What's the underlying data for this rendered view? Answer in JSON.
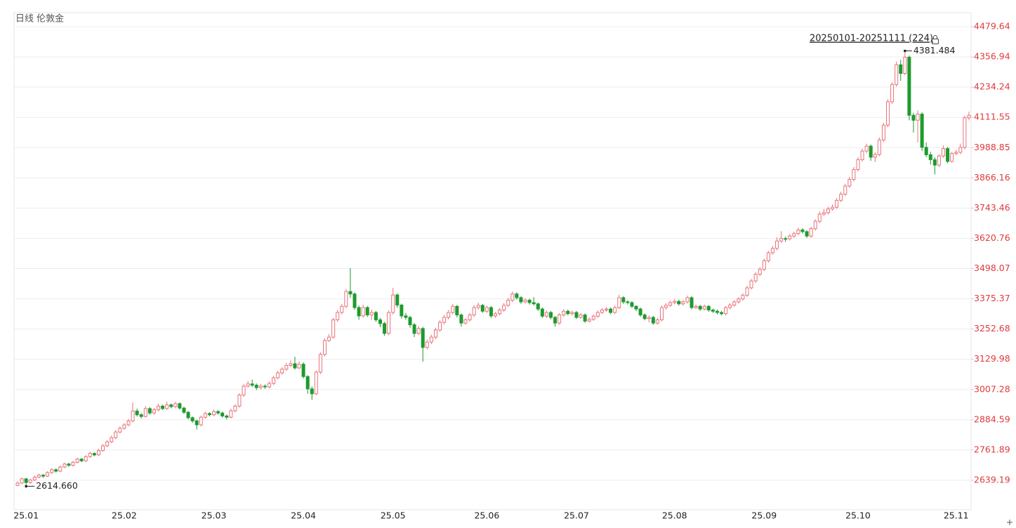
{
  "chart_data": {
    "type": "candlestick",
    "title": "日线 伦敦金",
    "range_label": "20250101-20251111 (224)",
    "categories": [
      null,
      null,
      "25.01",
      null,
      null,
      null,
      null,
      null,
      null,
      null,
      null,
      null,
      null,
      null,
      null,
      null,
      null,
      null,
      null,
      null,
      null,
      null,
      null,
      null,
      null,
      "25.02",
      null,
      null,
      null,
      null,
      null,
      null,
      null,
      null,
      null,
      null,
      null,
      null,
      null,
      null,
      null,
      null,
      null,
      null,
      null,
      null,
      "25.03",
      null,
      null,
      null,
      null,
      null,
      null,
      null,
      null,
      null,
      null,
      null,
      null,
      null,
      null,
      null,
      null,
      null,
      null,
      null,
      null,
      "25.04",
      null,
      null,
      null,
      null,
      null,
      null,
      null,
      null,
      null,
      null,
      null,
      null,
      null,
      null,
      null,
      null,
      null,
      null,
      null,
      null,
      "25.05",
      null,
      null,
      null,
      null,
      null,
      null,
      null,
      null,
      null,
      null,
      null,
      null,
      null,
      null,
      null,
      null,
      null,
      null,
      null,
      null,
      null,
      "25.06",
      null,
      null,
      null,
      null,
      null,
      null,
      null,
      null,
      null,
      null,
      null,
      null,
      null,
      null,
      null,
      null,
      null,
      null,
      null,
      null,
      "25.07",
      null,
      null,
      null,
      null,
      null,
      null,
      null,
      null,
      null,
      null,
      null,
      null,
      null,
      null,
      null,
      null,
      null,
      null,
      null,
      null,
      null,
      null,
      "25.08",
      null,
      null,
      null,
      null,
      null,
      null,
      null,
      null,
      null,
      null,
      null,
      null,
      null,
      null,
      null,
      null,
      null,
      null,
      null,
      null,
      "25.09",
      null,
      null,
      null,
      null,
      null,
      null,
      null,
      null,
      null,
      null,
      null,
      null,
      null,
      null,
      null,
      null,
      null,
      null,
      null,
      null,
      null,
      "25.10",
      null,
      null,
      null,
      null,
      null,
      null,
      null,
      null,
      null,
      null,
      null,
      null,
      null,
      null,
      null,
      null,
      null,
      null,
      null,
      null,
      null,
      null,
      "25.11",
      null,
      null,
      null
    ],
    "ohlc": [
      [
        2618,
        2634,
        2616,
        2628
      ],
      [
        2628,
        2650,
        2624,
        2645
      ],
      [
        2645,
        2648,
        2614.66,
        2630
      ],
      [
        2630,
        2645,
        2625,
        2640
      ],
      [
        2640,
        2658,
        2636,
        2652
      ],
      [
        2652,
        2666,
        2647,
        2660
      ],
      [
        2660,
        2664,
        2649,
        2656
      ],
      [
        2656,
        2676,
        2652,
        2670
      ],
      [
        2670,
        2688,
        2665,
        2682
      ],
      [
        2682,
        2687,
        2670,
        2676
      ],
      [
        2676,
        2699,
        2672,
        2693
      ],
      [
        2693,
        2711,
        2688,
        2705
      ],
      [
        2705,
        2710,
        2694,
        2700
      ],
      [
        2700,
        2718,
        2695,
        2712
      ],
      [
        2712,
        2731,
        2707,
        2725
      ],
      [
        2725,
        2729,
        2712,
        2718
      ],
      [
        2718,
        2742,
        2713,
        2735
      ],
      [
        2735,
        2755,
        2730,
        2748
      ],
      [
        2748,
        2752,
        2736,
        2742
      ],
      [
        2742,
        2767,
        2738,
        2760
      ],
      [
        2760,
        2786,
        2755,
        2779
      ],
      [
        2779,
        2802,
        2773,
        2795
      ],
      [
        2795,
        2820,
        2790,
        2812
      ],
      [
        2812,
        2843,
        2806,
        2835
      ],
      [
        2835,
        2858,
        2829,
        2850
      ],
      [
        2850,
        2871,
        2844,
        2864
      ],
      [
        2864,
        2888,
        2858,
        2880
      ],
      [
        2880,
        2955,
        2874,
        2920
      ],
      [
        2920,
        2930,
        2898,
        2905
      ],
      [
        2905,
        2912,
        2890,
        2898
      ],
      [
        2898,
        2940,
        2893,
        2930
      ],
      [
        2930,
        2936,
        2905,
        2912
      ],
      [
        2912,
        2933,
        2906,
        2925
      ],
      [
        2925,
        2950,
        2919,
        2940
      ],
      [
        2940,
        2946,
        2924,
        2930
      ],
      [
        2930,
        2958,
        2925,
        2945
      ],
      [
        2945,
        2950,
        2931,
        2938
      ],
      [
        2938,
        2958,
        2932,
        2950
      ],
      [
        2950,
        2955,
        2926,
        2932
      ],
      [
        2932,
        2938,
        2908,
        2915
      ],
      [
        2915,
        2920,
        2886,
        2893
      ],
      [
        2893,
        2898,
        2872,
        2880
      ],
      [
        2880,
        2886,
        2845,
        2864
      ],
      [
        2864,
        2902,
        2858,
        2895
      ],
      [
        2895,
        2918,
        2889,
        2910
      ],
      [
        2910,
        2915,
        2898,
        2905
      ],
      [
        2905,
        2926,
        2899,
        2918
      ],
      [
        2918,
        2924,
        2905,
        2912
      ],
      [
        2912,
        2917,
        2893,
        2900
      ],
      [
        2900,
        2906,
        2886,
        2895
      ],
      [
        2895,
        2930,
        2890,
        2921
      ],
      [
        2921,
        2948,
        2915,
        2940
      ],
      [
        2940,
        2992,
        2934,
        2985
      ],
      [
        2985,
        3030,
        2978,
        3021
      ],
      [
        3021,
        3042,
        3015,
        3030
      ],
      [
        3030,
        3048,
        3018,
        3025
      ],
      [
        3025,
        3032,
        3005,
        3015
      ],
      [
        3015,
        3030,
        3008,
        3021
      ],
      [
        3021,
        3028,
        3010,
        3018
      ],
      [
        3018,
        3040,
        3012,
        3032
      ],
      [
        3032,
        3063,
        3026,
        3055
      ],
      [
        3055,
        3084,
        3049,
        3075
      ],
      [
        3075,
        3098,
        3068,
        3090
      ],
      [
        3090,
        3115,
        3083,
        3105
      ],
      [
        3105,
        3125,
        3098,
        3112
      ],
      [
        3112,
        3140,
        3088,
        3095
      ],
      [
        3095,
        3122,
        3090,
        3110
      ],
      [
        3110,
        3118,
        3052,
        3060
      ],
      [
        3060,
        3066,
        2990,
        3010
      ],
      [
        3010,
        3020,
        2965,
        2990
      ],
      [
        2990,
        3085,
        2984,
        3078
      ],
      [
        3078,
        3158,
        3070,
        3150
      ],
      [
        3150,
        3215,
        3142,
        3206
      ],
      [
        3206,
        3232,
        3200,
        3220
      ],
      [
        3220,
        3298,
        3214,
        3290
      ],
      [
        3290,
        3330,
        3282,
        3320
      ],
      [
        3320,
        3355,
        3312,
        3345
      ],
      [
        3345,
        3415,
        3338,
        3405
      ],
      [
        3405,
        3500,
        3380,
        3395
      ],
      [
        3395,
        3402,
        3330,
        3340
      ],
      [
        3340,
        3348,
        3290,
        3306
      ],
      [
        3306,
        3352,
        3300,
        3340
      ],
      [
        3340,
        3346,
        3302,
        3310
      ],
      [
        3310,
        3332,
        3290,
        3320
      ],
      [
        3320,
        3326,
        3282,
        3290
      ],
      [
        3290,
        3298,
        3260,
        3275
      ],
      [
        3275,
        3282,
        3225,
        3235
      ],
      [
        3235,
        3328,
        3228,
        3320
      ],
      [
        3320,
        3420,
        3312,
        3391
      ],
      [
        3391,
        3398,
        3340,
        3350
      ],
      [
        3350,
        3356,
        3295,
        3306
      ],
      [
        3306,
        3318,
        3290,
        3300
      ],
      [
        3300,
        3306,
        3258,
        3270
      ],
      [
        3270,
        3278,
        3220,
        3235
      ],
      [
        3235,
        3265,
        3228,
        3255
      ],
      [
        3255,
        3262,
        3120,
        3178
      ],
      [
        3178,
        3210,
        3170,
        3200
      ],
      [
        3200,
        3230,
        3192,
        3220
      ],
      [
        3220,
        3258,
        3212,
        3249
      ],
      [
        3249,
        3288,
        3242,
        3280
      ],
      [
        3280,
        3310,
        3272,
        3300
      ],
      [
        3300,
        3330,
        3292,
        3320
      ],
      [
        3320,
        3355,
        3312,
        3345
      ],
      [
        3345,
        3350,
        3300,
        3310
      ],
      [
        3310,
        3316,
        3262,
        3277
      ],
      [
        3277,
        3298,
        3270,
        3290
      ],
      [
        3290,
        3318,
        3282,
        3310
      ],
      [
        3310,
        3350,
        3302,
        3340
      ],
      [
        3340,
        3360,
        3332,
        3349
      ],
      [
        3349,
        3355,
        3318,
        3325
      ],
      [
        3325,
        3348,
        3318,
        3340
      ],
      [
        3340,
        3346,
        3298,
        3306
      ],
      [
        3306,
        3322,
        3298,
        3315
      ],
      [
        3315,
        3338,
        3308,
        3330
      ],
      [
        3330,
        3358,
        3322,
        3349
      ],
      [
        3349,
        3380,
        3342,
        3370
      ],
      [
        3370,
        3405,
        3362,
        3395
      ],
      [
        3395,
        3402,
        3372,
        3380
      ],
      [
        3380,
        3386,
        3355,
        3363
      ],
      [
        3363,
        3378,
        3356,
        3370
      ],
      [
        3370,
        3376,
        3352,
        3360
      ],
      [
        3360,
        3382,
        3348,
        3355
      ],
      [
        3355,
        3360,
        3326,
        3334
      ],
      [
        3334,
        3340,
        3298,
        3305
      ],
      [
        3305,
        3328,
        3298,
        3320
      ],
      [
        3320,
        3326,
        3292,
        3300
      ],
      [
        3300,
        3306,
        3262,
        3277
      ],
      [
        3277,
        3318,
        3270,
        3310
      ],
      [
        3310,
        3333,
        3302,
        3325
      ],
      [
        3325,
        3332,
        3308,
        3315
      ],
      [
        3315,
        3328,
        3308,
        3320
      ],
      [
        3320,
        3326,
        3293,
        3300
      ],
      [
        3300,
        3318,
        3294,
        3310
      ],
      [
        3310,
        3316,
        3278,
        3285
      ],
      [
        3285,
        3300,
        3279,
        3292
      ],
      [
        3292,
        3312,
        3286,
        3305
      ],
      [
        3305,
        3328,
        3298,
        3320
      ],
      [
        3320,
        3338,
        3314,
        3330
      ],
      [
        3330,
        3342,
        3323,
        3334
      ],
      [
        3334,
        3340,
        3313,
        3320
      ],
      [
        3320,
        3348,
        3314,
        3340
      ],
      [
        3340,
        3392,
        3334,
        3380
      ],
      [
        3380,
        3386,
        3355,
        3363
      ],
      [
        3363,
        3370,
        3352,
        3360
      ],
      [
        3360,
        3366,
        3338,
        3345
      ],
      [
        3345,
        3350,
        3326,
        3334
      ],
      [
        3334,
        3340,
        3303,
        3310
      ],
      [
        3310,
        3316,
        3288,
        3295
      ],
      [
        3295,
        3308,
        3280,
        3300
      ],
      [
        3300,
        3306,
        3270,
        3277
      ],
      [
        3277,
        3298,
        3270,
        3290
      ],
      [
        3290,
        3348,
        3284,
        3340
      ],
      [
        3340,
        3358,
        3332,
        3349
      ],
      [
        3349,
        3368,
        3342,
        3360
      ],
      [
        3360,
        3374,
        3353,
        3365
      ],
      [
        3365,
        3372,
        3348,
        3355
      ],
      [
        3355,
        3370,
        3348,
        3363
      ],
      [
        3363,
        3388,
        3356,
        3380
      ],
      [
        3380,
        3386,
        3332,
        3340
      ],
      [
        3340,
        3352,
        3334,
        3345
      ],
      [
        3345,
        3350,
        3326,
        3334
      ],
      [
        3334,
        3352,
        3328,
        3345
      ],
      [
        3345,
        3350,
        3323,
        3330
      ],
      [
        3330,
        3336,
        3318,
        3325
      ],
      [
        3325,
        3332,
        3312,
        3320
      ],
      [
        3320,
        3326,
        3308,
        3315
      ],
      [
        3315,
        3346,
        3308,
        3340
      ],
      [
        3340,
        3358,
        3333,
        3350
      ],
      [
        3350,
        3370,
        3343,
        3363
      ],
      [
        3363,
        3382,
        3356,
        3375
      ],
      [
        3375,
        3398,
        3368,
        3390
      ],
      [
        3390,
        3428,
        3383,
        3420
      ],
      [
        3420,
        3456,
        3413,
        3448
      ],
      [
        3448,
        3484,
        3440,
        3475
      ],
      [
        3475,
        3504,
        3468,
        3495
      ],
      [
        3495,
        3538,
        3488,
        3530
      ],
      [
        3530,
        3570,
        3522,
        3562
      ],
      [
        3562,
        3590,
        3555,
        3580
      ],
      [
        3580,
        3625,
        3572,
        3610
      ],
      [
        3610,
        3650,
        3602,
        3620
      ],
      [
        3620,
        3628,
        3606,
        3619
      ],
      [
        3619,
        3638,
        3612,
        3630
      ],
      [
        3630,
        3648,
        3623,
        3640
      ],
      [
        3640,
        3664,
        3633,
        3655
      ],
      [
        3655,
        3662,
        3640,
        3648
      ],
      [
        3648,
        3654,
        3622,
        3630
      ],
      [
        3630,
        3668,
        3623,
        3660
      ],
      [
        3660,
        3698,
        3652,
        3690
      ],
      [
        3690,
        3730,
        3683,
        3719
      ],
      [
        3719,
        3740,
        3712,
        3725
      ],
      [
        3725,
        3750,
        3718,
        3740
      ],
      [
        3740,
        3758,
        3733,
        3747
      ],
      [
        3747,
        3784,
        3740,
        3775
      ],
      [
        3775,
        3810,
        3768,
        3800
      ],
      [
        3800,
        3842,
        3793,
        3833
      ],
      [
        3833,
        3870,
        3826,
        3860
      ],
      [
        3860,
        3910,
        3852,
        3900
      ],
      [
        3900,
        3950,
        3892,
        3940
      ],
      [
        3940,
        3985,
        3932,
        3975
      ],
      [
        3975,
        4005,
        3966,
        3995
      ],
      [
        3995,
        4002,
        3935,
        3950
      ],
      [
        3950,
        3970,
        3930,
        3961
      ],
      [
        3961,
        4030,
        3954,
        4020
      ],
      [
        4020,
        4090,
        4012,
        4080
      ],
      [
        4080,
        4185,
        4072,
        4175
      ],
      [
        4175,
        4255,
        4166,
        4245
      ],
      [
        4245,
        4338,
        4236,
        4325
      ],
      [
        4325,
        4345,
        4260,
        4290
      ],
      [
        4290,
        4381.484,
        4282,
        4356
      ],
      [
        4356,
        4362,
        4100,
        4120
      ],
      [
        4120,
        4130,
        4050,
        4100
      ],
      [
        4100,
        4140,
        4010,
        4125
      ],
      [
        4125,
        4132,
        3975,
        3990
      ],
      [
        3990,
        4010,
        3950,
        3960
      ],
      [
        3960,
        3972,
        3920,
        3940
      ],
      [
        3940,
        3950,
        3880,
        3918
      ],
      [
        3918,
        3962,
        3910,
        3955
      ],
      [
        3955,
        3998,
        3948,
        3985
      ],
      [
        3985,
        3992,
        3925,
        3933
      ],
      [
        3933,
        3972,
        3928,
        3965
      ],
      [
        3965,
        3980,
        3958,
        3970
      ],
      [
        3970,
        4005,
        3962,
        3990
      ],
      [
        3990,
        4118,
        3982,
        4110
      ],
      [
        4110,
        4135,
        4100,
        4120
      ]
    ],
    "high_label": "4381.484",
    "low_label": "2614.660",
    "up_color": "#e8737a",
    "down_color": "#1e9a2e",
    "tick_color": "#e03a3a",
    "ylim": [
      2519.5,
      4536.6
    ],
    "yticks": [
      4479.64,
      4356.94,
      4234.24,
      4111.55,
      3988.85,
      3866.16,
      3743.46,
      3620.76,
      3498.07,
      3375.37,
      3252.68,
      3129.98,
      3007.28,
      2884.59,
      2761.89,
      2639.19
    ],
    "grid": true
  }
}
